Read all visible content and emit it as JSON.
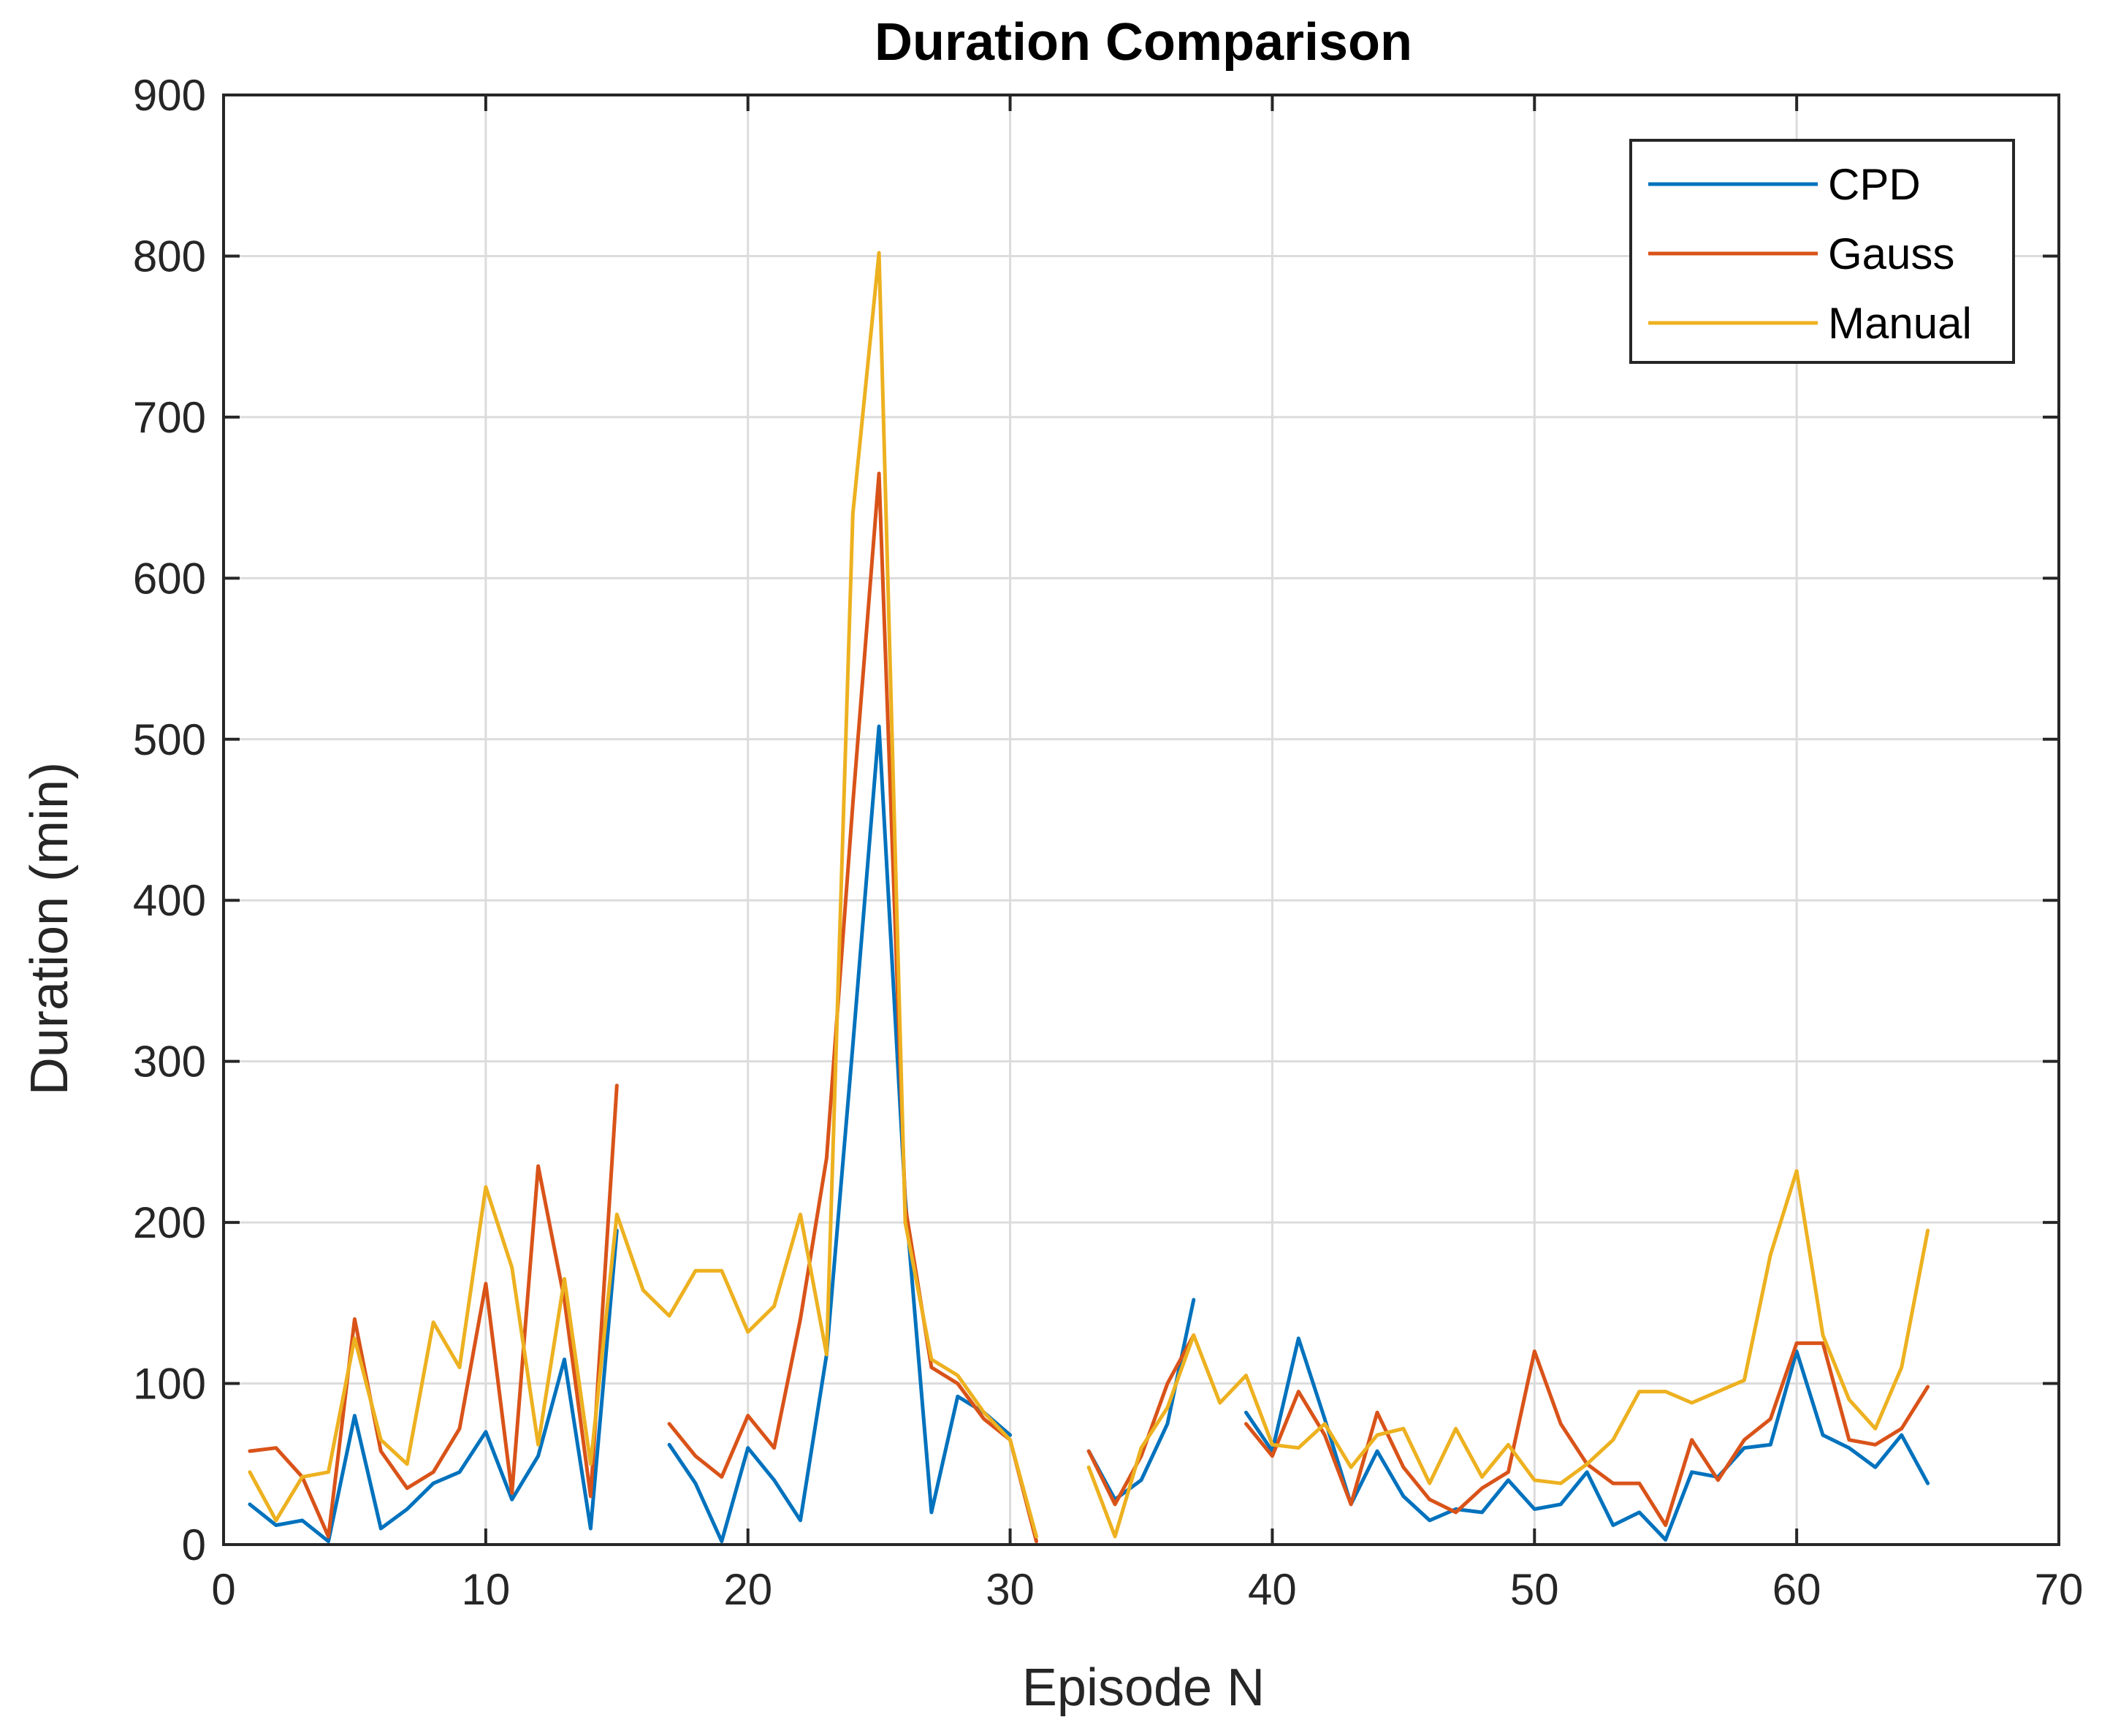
{
  "chart_data": {
    "type": "line",
    "title": "Duration Comparison",
    "xlabel": "Episode N",
    "ylabel": "Duration (min)",
    "xlim": [
      0,
      70
    ],
    "ylim": [
      0,
      900
    ],
    "xticks": [
      0,
      10,
      20,
      30,
      40,
      50,
      60,
      70
    ],
    "yticks": [
      0,
      100,
      200,
      300,
      400,
      500,
      600,
      700,
      800,
      900
    ],
    "grid": true,
    "legend_location": "top-right",
    "x": [
      1,
      2,
      3,
      4,
      5,
      6,
      7,
      8,
      9,
      10,
      11,
      12,
      13,
      14,
      15,
      16,
      17,
      18,
      19,
      20,
      21,
      22,
      23,
      24,
      25,
      26,
      27,
      28,
      29,
      30,
      31,
      32,
      33,
      34,
      35,
      36,
      37,
      38,
      39,
      40,
      41,
      42,
      43,
      44,
      45,
      46,
      47,
      48,
      49,
      50,
      51,
      52,
      53,
      54,
      55,
      56,
      57,
      58,
      59,
      60,
      61,
      62,
      63,
      64,
      65
    ],
    "series": [
      {
        "name": "CPD",
        "color": "#0072BD",
        "values": [
          25,
          12,
          15,
          2,
          80,
          10,
          22,
          38,
          45,
          70,
          28,
          55,
          115,
          10,
          195,
          null,
          62,
          38,
          2,
          60,
          40,
          15,
          118,
          310,
          508,
          215,
          20,
          92,
          82,
          68,
          null,
          null,
          58,
          28,
          40,
          75,
          152,
          null,
          82,
          58,
          128,
          78,
          25,
          58,
          30,
          15,
          22,
          20,
          40,
          22,
          25,
          45,
          12,
          20,
          3,
          45,
          42,
          60,
          62,
          120,
          68,
          60,
          48,
          68,
          38
        ]
      },
      {
        "name": "Gauss",
        "color": "#D95319",
        "values": [
          58,
          60,
          42,
          5,
          140,
          58,
          35,
          45,
          72,
          162,
          32,
          235,
          152,
          30,
          285,
          null,
          75,
          55,
          42,
          80,
          60,
          140,
          240,
          460,
          665,
          210,
          110,
          100,
          78,
          65,
          2,
          null,
          58,
          25,
          55,
          100,
          130,
          null,
          75,
          55,
          95,
          68,
          25,
          82,
          48,
          28,
          20,
          35,
          45,
          120,
          75,
          50,
          38,
          38,
          12,
          65,
          40,
          65,
          78,
          125,
          125,
          65,
          62,
          72,
          98
        ]
      },
      {
        "name": "Manual",
        "color": "#EDB120",
        "values": [
          45,
          15,
          42,
          45,
          128,
          65,
          50,
          138,
          110,
          222,
          172,
          62,
          165,
          50,
          205,
          158,
          142,
          170,
          170,
          132,
          148,
          205,
          118,
          640,
          802,
          200,
          115,
          105,
          82,
          65,
          5,
          null,
          48,
          5,
          60,
          85,
          130,
          88,
          105,
          62,
          60,
          75,
          48,
          68,
          72,
          38,
          72,
          42,
          62,
          40,
          38,
          50,
          65,
          95,
          95,
          88,
          95,
          102,
          180,
          232,
          130,
          90,
          72,
          110,
          195
        ]
      }
    ]
  }
}
